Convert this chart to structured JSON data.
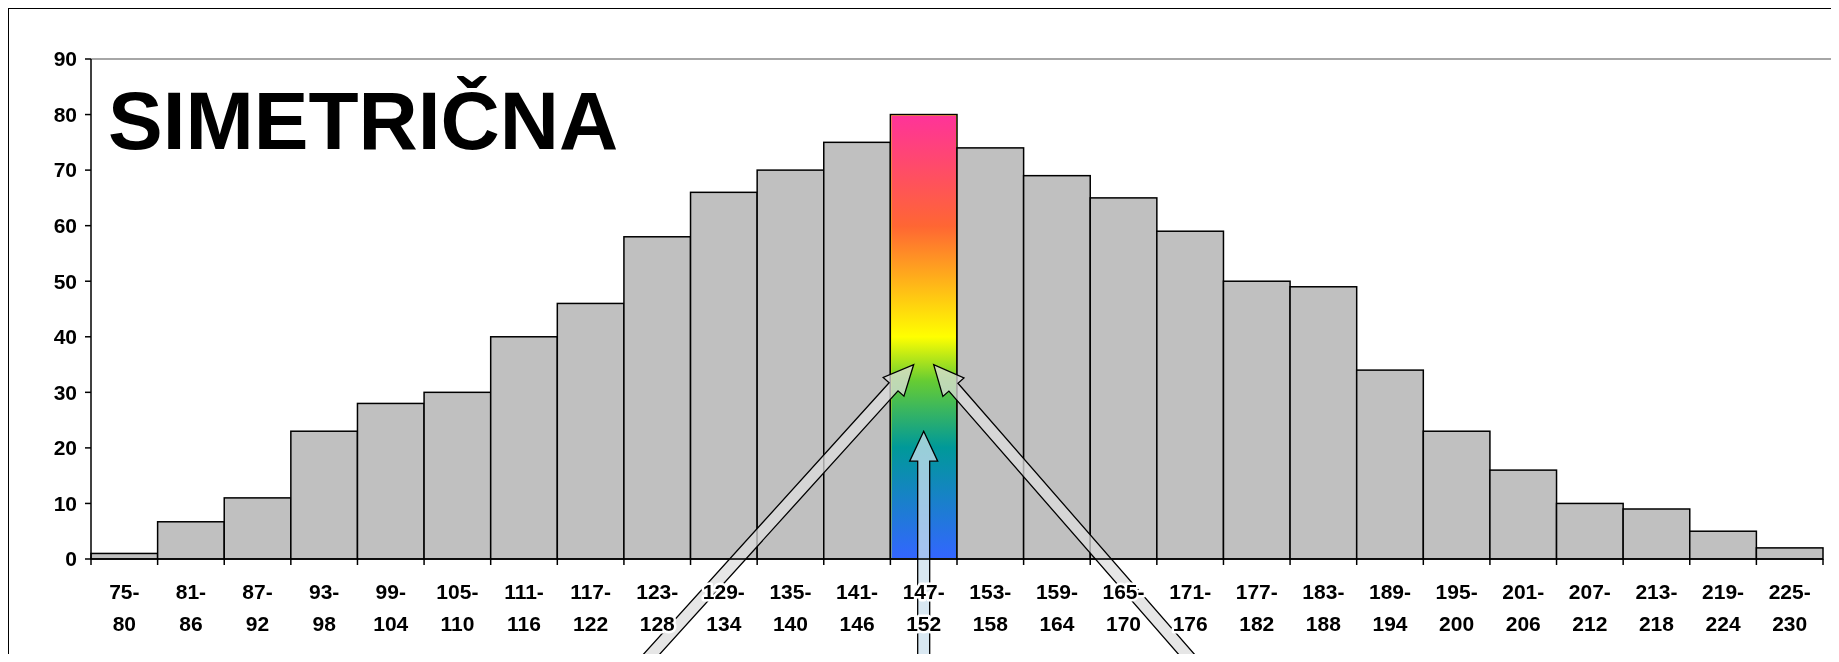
{
  "chart_data": {
    "type": "bar",
    "title": "SIMETRIČNA",
    "categories": [
      "75-80",
      "81-86",
      "87-92",
      "93-98",
      "99-104",
      "105-110",
      "111-116",
      "117-122",
      "123-128",
      "129-134",
      "135-140",
      "141-146",
      "147-152",
      "153-158",
      "159-164",
      "165-170",
      "171-176",
      "177-182",
      "183-188",
      "189-194",
      "195-200",
      "201-206",
      "207-212",
      "213-218",
      "219-224",
      "225-230"
    ],
    "values": [
      1,
      6.7,
      11,
      23,
      28,
      30,
      40,
      46,
      58,
      66,
      70,
      75,
      80,
      74,
      69,
      65,
      59,
      50,
      49,
      34,
      23,
      16,
      10,
      9,
      5,
      2
    ],
    "colors": [
      "#c0c0c0",
      "#c0c0c0",
      "#c0c0c0",
      "#c0c0c0",
      "#c0c0c0",
      "#c0c0c0",
      "#c0c0c0",
      "#c0c0c0",
      "#c0c0c0",
      "#c0c0c0",
      "#c0c0c0",
      "#c0c0c0",
      "#ffff00",
      "#c0c0c0",
      "#c0c0c0",
      "#c0c0c0",
      "#c0c0c0",
      "#c0c0c0",
      "#c0c0c0",
      "#c0c0c0",
      "#c0c0c0",
      "#c0c0c0",
      "#c0c0c0",
      "#c0c0c0",
      "#c0c0c0",
      "#c0c0c0"
    ],
    "ylim": [
      0,
      90
    ],
    "yticks": [
      0,
      10,
      20,
      30,
      40,
      50,
      60,
      70,
      80,
      90
    ],
    "grid": false
  }
}
